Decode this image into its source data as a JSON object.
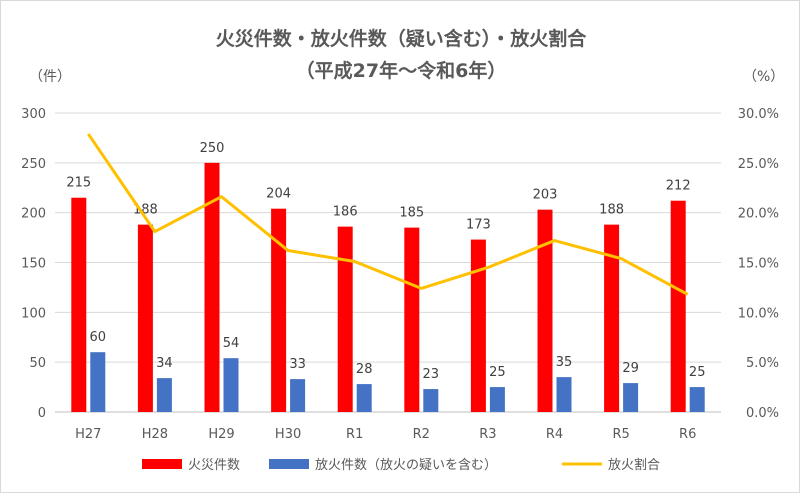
{
  "chart_data": {
    "type": "bar",
    "title": "火災件数・放火件数（疑い含む）・放火割合",
    "subtitle": "（平成27年～令和6年）",
    "ylabel_left": "（件）",
    "ylabel_right": "（%）",
    "categories": [
      "H27",
      "H28",
      "H29",
      "H30",
      "R1",
      "R2",
      "R3",
      "R4",
      "R5",
      "R6"
    ],
    "ylim_left": [
      0,
      300
    ],
    "yticks_left": [
      "0",
      "50",
      "100",
      "150",
      "200",
      "250",
      "300"
    ],
    "ylim_right": [
      0,
      30
    ],
    "yticks_right": [
      "0.0%",
      "5.0%",
      "10.0%",
      "15.0%",
      "20.0%",
      "25.0%",
      "30.0%"
    ],
    "grid": true,
    "legend_position": "bottom",
    "series": [
      {
        "name": "火災件数",
        "type": "bar",
        "axis": "left",
        "color": "#ff0000",
        "values": [
          215,
          188,
          250,
          204,
          186,
          185,
          173,
          203,
          188,
          212
        ]
      },
      {
        "name": "放火件数（放火の疑いを含む）",
        "type": "bar",
        "axis": "left",
        "color": "#4472c4",
        "values": [
          60,
          34,
          54,
          33,
          28,
          23,
          25,
          35,
          29,
          25
        ]
      },
      {
        "name": "放火割合",
        "type": "line",
        "axis": "right",
        "color": "#ffc000",
        "values": [
          27.9,
          18.1,
          21.6,
          16.2,
          15.1,
          12.4,
          14.5,
          17.2,
          15.4,
          11.8
        ]
      }
    ]
  }
}
